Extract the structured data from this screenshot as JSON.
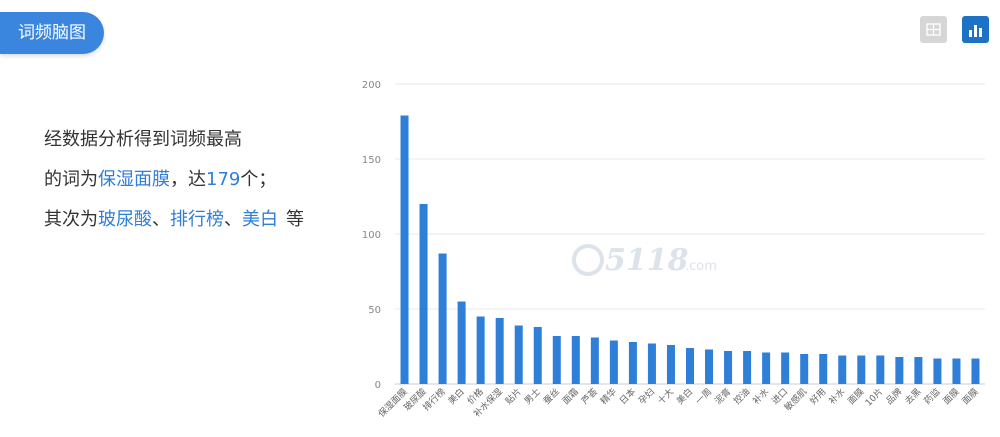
{
  "header": {
    "title": "词频脑图"
  },
  "summary": {
    "line1": "经数据分析得到词频最高",
    "line2_prefix": "的词为",
    "top_word": "保湿面膜",
    "line2_mid": "，达",
    "top_count": "179",
    "line2_suffix": "个；",
    "line3_prefix": "其次为",
    "second_words": [
      "玻尿酸",
      "排行榜",
      "美白"
    ],
    "separator": "、",
    "line3_suffix": "等"
  },
  "toolbar": {
    "table_icon": "table-view-icon",
    "chart_icon": "bar-chart-icon"
  },
  "watermark": {
    "text": "5118",
    "suffix": ".com"
  },
  "colors": {
    "bar": "#2f7ed8",
    "accent": "#3a86df",
    "highlight": "#2f7ed8"
  },
  "chart_data": {
    "type": "bar",
    "title": "",
    "xlabel": "",
    "ylabel": "",
    "ylim": [
      0,
      200
    ],
    "yticks": [
      0,
      50,
      100,
      150,
      200
    ],
    "grid": true,
    "categories": [
      "保湿面膜",
      "玻尿酸",
      "排行榜",
      "美白",
      "价格",
      "补水保湿",
      "贴片",
      "男士",
      "蚕丝",
      "面霜",
      "芦荟",
      "精华",
      "日本",
      "孕妇",
      "十大",
      "美白",
      "一周",
      "泥膏",
      "控油",
      "补水",
      "进口",
      "敏感肌",
      "好用",
      "补水",
      "面膜",
      "10片",
      "品牌",
      "去黑",
      "药监",
      "面膜",
      "面膜"
    ],
    "values": [
      179,
      120,
      87,
      55,
      45,
      44,
      39,
      38,
      32,
      32,
      31,
      29,
      28,
      27,
      26,
      24,
      23,
      22,
      22,
      21,
      21,
      20,
      20,
      19,
      19,
      19,
      18,
      18,
      17,
      17,
      17
    ]
  }
}
